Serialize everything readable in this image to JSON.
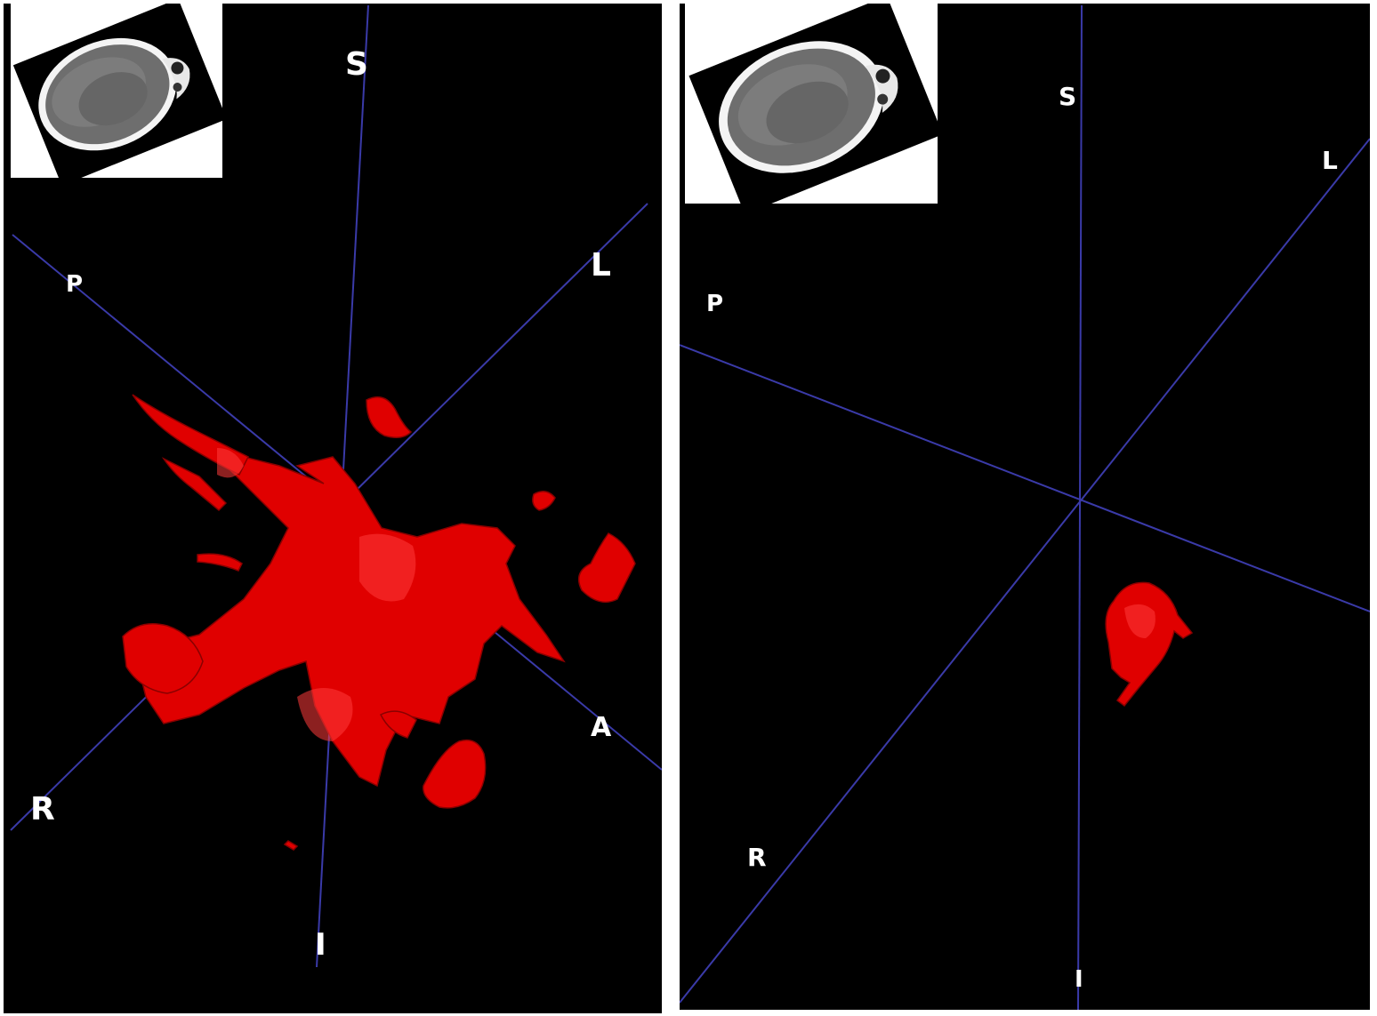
{
  "colors": {
    "background": "#000000",
    "axis_line": "#3a3aa8",
    "segmentation": "#e00000",
    "label": "#ffffff",
    "divider": "#ffffff"
  },
  "left_view": {
    "orientation_labels": {
      "superior": "S",
      "inferior": "I",
      "left": "L",
      "right": "R",
      "anterior": "A",
      "posterior": "P"
    },
    "thumbnail": "axial-ct-slice"
  },
  "right_view": {
    "orientation_labels": {
      "superior": "S",
      "inferior": "I",
      "left": "L",
      "right": "R",
      "posterior": "P"
    },
    "thumbnail": "axial-ct-slice"
  }
}
